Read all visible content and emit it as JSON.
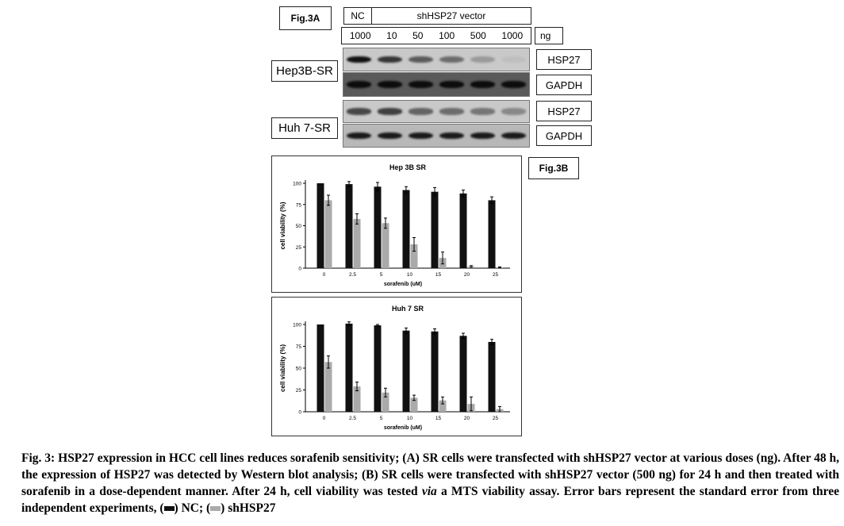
{
  "fig3a": {
    "tag": "Fig.3A",
    "header": {
      "nc": "NC",
      "vector": "shHSP27 vector",
      "unit": "ng"
    },
    "doses": [
      "1000",
      "10",
      "50",
      "100",
      "500",
      "1000"
    ],
    "cell_lines": [
      "Hep3B-SR",
      "Huh 7-SR"
    ],
    "proteins": [
      "HSP27",
      "GAPDH",
      "HSP27",
      "GAPDH"
    ],
    "hep_hsp27_intensity": [
      1.0,
      0.8,
      0.6,
      0.5,
      0.25,
      0.0
    ],
    "huh_hsp27_intensity": [
      0.7,
      0.75,
      0.55,
      0.5,
      0.45,
      0.35
    ]
  },
  "fig3b": {
    "tag": "Fig.3B"
  },
  "chart_data": [
    {
      "type": "bar",
      "title": "Hep 3B SR",
      "xlabel": "sorafenib (uM)",
      "ylabel": "cell viability (%)",
      "ylim": [
        0,
        100
      ],
      "yticks": [
        "0",
        "25",
        "50",
        "75",
        "100"
      ],
      "categories": [
        "0",
        "2.5",
        "5",
        "10",
        "15",
        "20",
        "25"
      ],
      "series": [
        {
          "name": "NC",
          "color": "#111111",
          "values": [
            100,
            99,
            96,
            92,
            90,
            88,
            80
          ],
          "errors": [
            0,
            3,
            5,
            4,
            5,
            4,
            4
          ]
        },
        {
          "name": "shHSP27",
          "color": "#aaaaaa",
          "values": [
            80,
            58,
            53,
            28,
            12,
            2,
            1
          ],
          "errors": [
            6,
            6,
            6,
            8,
            7,
            1,
            0.5
          ]
        }
      ]
    },
    {
      "type": "bar",
      "title": "Huh 7 SR",
      "xlabel": "sorafenib (uM)",
      "ylabel": "cell viability (%)",
      "ylim": [
        0,
        100
      ],
      "yticks": [
        "0",
        "25",
        "50",
        "75",
        "100"
      ],
      "categories": [
        "0",
        "2.5",
        "5",
        "10",
        "15",
        "20",
        "25"
      ],
      "series": [
        {
          "name": "NC",
          "color": "#111111",
          "values": [
            100,
            101,
            99,
            93,
            92,
            87,
            80
          ],
          "errors": [
            0,
            2,
            1,
            3,
            3,
            3,
            3
          ]
        },
        {
          "name": "shHSP27",
          "color": "#aaaaaa",
          "values": [
            57,
            29,
            22,
            16,
            13,
            9,
            3
          ],
          "errors": [
            7,
            5,
            5,
            3,
            4,
            8,
            3
          ]
        }
      ]
    }
  ],
  "caption": {
    "lead": "Fig. 3: HSP27 expression in HCC cell lines reduces sorafenib sensitivity; (A) SR cells were transfected with shHSP27 vector at various doses (ng). After 48 h, the expression of HSP27 was detected by Western blot analysis; (B) SR cells were transfected with shHSP27 vector (500 ng) for 24 h and then treated with sorafenib in a dose-dependent manner. After 24 h, cell viability was tested",
    "via": "via",
    "tail": "a MTS viability assay. Error bars represent the standard error from three independent experiments, (",
    "nc": ") NC; (",
    "sh": ") shHSP27"
  }
}
